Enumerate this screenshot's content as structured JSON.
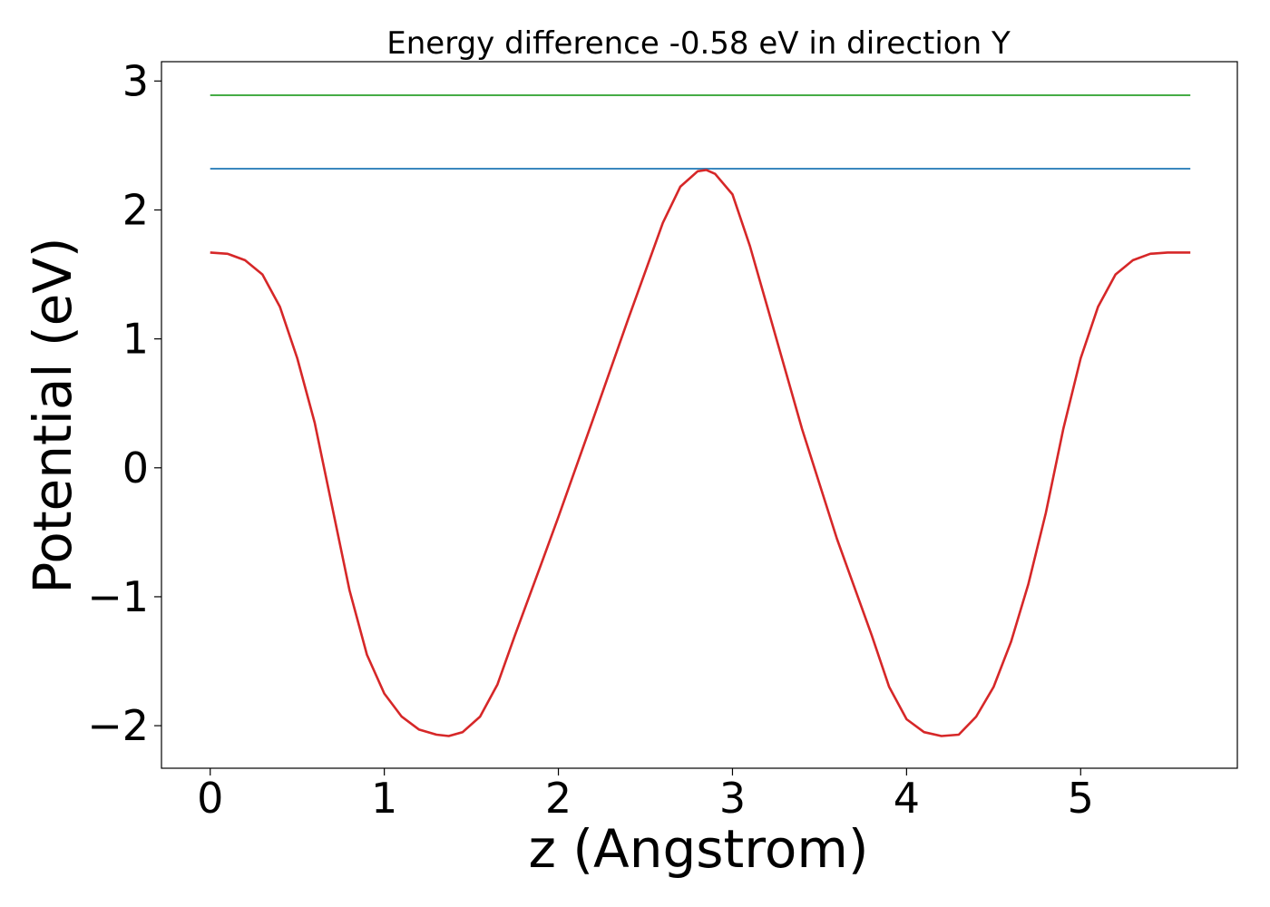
{
  "chart_data": {
    "type": "line",
    "title": "Energy difference -0.58 eV in direction Y",
    "xlabel": "z (Angstrom)",
    "ylabel": "Potential (eV)",
    "xlim": [
      -0.28,
      5.9
    ],
    "ylim": [
      -2.33,
      3.15
    ],
    "xticks": [
      0,
      1,
      2,
      3,
      4,
      5
    ],
    "xtick_labels": [
      "0",
      "1",
      "2",
      "3",
      "4",
      "5"
    ],
    "yticks": [
      -2,
      -1,
      0,
      1,
      2,
      3
    ],
    "ytick_labels": [
      "−2",
      "−1",
      "0",
      "1",
      "2",
      "3"
    ],
    "grid": false,
    "series": [
      {
        "color": "#1f77b4",
        "x": [
          0,
          5.63
        ],
        "y": [
          2.32,
          2.32
        ]
      },
      {
        "color": "#2ca02c",
        "x": [
          0,
          5.63
        ],
        "y": [
          2.89,
          2.89
        ]
      },
      {
        "color": "#d62728",
        "x": [
          0,
          0.1,
          0.2,
          0.3,
          0.4,
          0.5,
          0.6,
          0.7,
          0.8,
          0.9,
          1.0,
          1.1,
          1.2,
          1.3,
          1.37,
          1.45,
          1.55,
          1.65,
          1.75,
          1.9,
          2.0,
          2.2,
          2.4,
          2.6,
          2.7,
          2.8,
          2.85,
          2.9,
          3.0,
          3.1,
          3.2,
          3.4,
          3.6,
          3.8,
          3.9,
          4.0,
          4.1,
          4.2,
          4.3,
          4.4,
          4.5,
          4.6,
          4.7,
          4.8,
          4.9,
          5.0,
          5.1,
          5.2,
          5.3,
          5.4,
          5.5,
          5.63
        ],
        "y": [
          1.67,
          1.66,
          1.61,
          1.5,
          1.25,
          0.85,
          0.35,
          -0.3,
          -0.95,
          -1.45,
          -1.75,
          -1.93,
          -2.03,
          -2.07,
          -2.08,
          -2.05,
          -1.93,
          -1.68,
          -1.3,
          -0.75,
          -0.38,
          0.38,
          1.15,
          1.9,
          2.18,
          2.3,
          2.31,
          2.28,
          2.12,
          1.72,
          1.25,
          0.3,
          -0.55,
          -1.3,
          -1.7,
          -1.95,
          -2.05,
          -2.08,
          -2.07,
          -1.93,
          -1.7,
          -1.35,
          -0.9,
          -0.35,
          0.3,
          0.85,
          1.25,
          1.5,
          1.61,
          1.66,
          1.67,
          1.67
        ]
      }
    ]
  }
}
